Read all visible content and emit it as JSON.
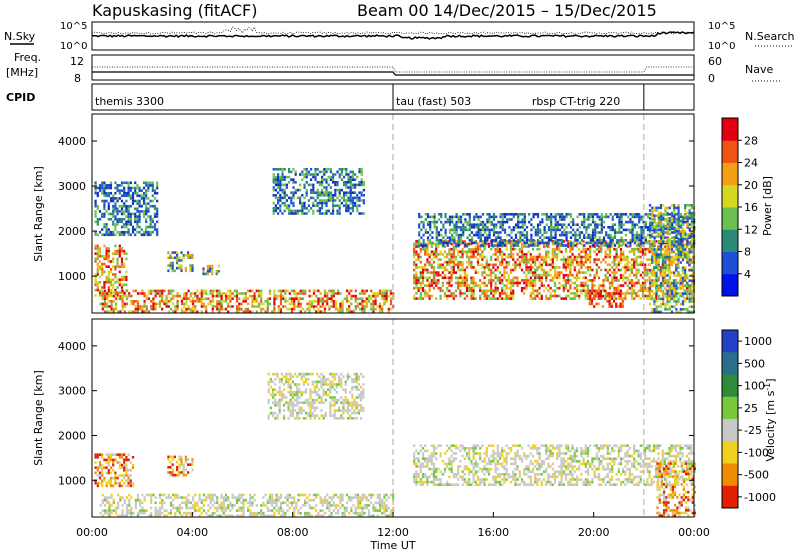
{
  "header": {
    "title": "Kapuskasing (fitACF)",
    "beam_info": "Beam 00",
    "date_range": "14/Dec/2015 – 15/Dec/2015"
  },
  "status_panels": {
    "nsky_label": "N.Sky",
    "nsearch_label": "N.Search",
    "noise_ticks_left": [
      "10^5",
      "10^0"
    ],
    "noise_ticks_right": [
      "10^5",
      "10^0"
    ],
    "freq_label_top": "Freq.",
    "freq_label_unit": "[MHz]",
    "freq_ticks": [
      "12",
      "8"
    ],
    "nave_label": "Nave",
    "nave_ticks": [
      "60",
      "0"
    ],
    "cpid_label": "CPID",
    "cpid_segments": [
      {
        "name": "themis 3300",
        "start_hour": 0,
        "end_hour": 12
      },
      {
        "name": "tau (fast) 503",
        "start_hour": 12,
        "end_hour": 22
      },
      {
        "name": "rbsp CT-trig 220",
        "start_hour": 22,
        "end_hour": 24
      }
    ]
  },
  "chart_data": [
    {
      "type": "heatmap",
      "name": "power",
      "ylabel": "Slant Range [km]",
      "ylim": [
        180,
        4600
      ],
      "yticks": [
        1000,
        2000,
        3000,
        4000
      ],
      "xlim": [
        0,
        24
      ],
      "colorbar_label": "Power [dB]",
      "colorbar_ticks": [
        "4",
        "8",
        "12",
        "16",
        "20",
        "24",
        "28"
      ],
      "colorbar_colors": [
        "#0010e6",
        "#1f4fd6",
        "#2a8a76",
        "#6bbf4f",
        "#d4d81e",
        "#f2a017",
        "#ee5512",
        "#e00010"
      ],
      "regions": [
        {
          "x": [
            0.1,
            2.6
          ],
          "y": [
            1900,
            3100
          ],
          "value": "low"
        },
        {
          "x": [
            0.1,
            1.4
          ],
          "y": [
            600,
            1700
          ],
          "value": "high"
        },
        {
          "x": [
            3.0,
            4.0
          ],
          "y": [
            1100,
            1550
          ],
          "value": "medium"
        },
        {
          "x": [
            4.4,
            5.1
          ],
          "y": [
            1050,
            1250
          ],
          "value": "medium"
        },
        {
          "x": [
            7.2,
            10.8
          ],
          "y": [
            2400,
            3400
          ],
          "value": "low"
        },
        {
          "x": [
            0.3,
            12.0
          ],
          "y": [
            200,
            700
          ],
          "value": "high"
        },
        {
          "x": [
            12.8,
            24.0
          ],
          "y": [
            500,
            1800
          ],
          "value": "high"
        },
        {
          "x": [
            13.0,
            24.0
          ],
          "y": [
            1700,
            2400
          ],
          "value": "low"
        },
        {
          "x": [
            19.8,
            21.2
          ],
          "y": [
            300,
            700
          ],
          "value": "very-high"
        },
        {
          "x": [
            22.2,
            24.0
          ],
          "y": [
            200,
            2600
          ],
          "value": "medium"
        }
      ]
    },
    {
      "type": "heatmap",
      "name": "velocity",
      "ylabel": "Slant Range [km]",
      "ylim": [
        180,
        4600
      ],
      "yticks": [
        1000,
        2000,
        3000,
        4000
      ],
      "xlim": [
        0,
        24
      ],
      "xticks": [
        "00:00",
        "04:00",
        "08:00",
        "12:00",
        "16:00",
        "20:00",
        "00:00"
      ],
      "xlabel": "Time UT",
      "colorbar_label": "Velocity [m s^-1]",
      "colorbar_ticks": [
        "1000",
        "500",
        "100",
        "25",
        "-25",
        "-100",
        "-500",
        "-1000"
      ],
      "colorbar_colors": [
        "#2340c8",
        "#2a6e8c",
        "#2f8a3c",
        "#78c83c",
        "#c8c8c8",
        "#f0d020",
        "#f08c00",
        "#e02000"
      ],
      "regions": [
        {
          "x": [
            0.3,
            12.0
          ],
          "y": [
            200,
            700
          ],
          "value": "-25 to 25"
        },
        {
          "x": [
            0.1,
            1.6
          ],
          "y": [
            900,
            1600
          ],
          "value": "-500 to -100"
        },
        {
          "x": [
            3.0,
            4.0
          ],
          "y": [
            1100,
            1550
          ],
          "value": "-500 to -100"
        },
        {
          "x": [
            7.0,
            10.8
          ],
          "y": [
            2400,
            3400
          ],
          "value": "-25 to 25"
        },
        {
          "x": [
            12.8,
            24.0
          ],
          "y": [
            900,
            1800
          ],
          "value": "-25 to 25"
        },
        {
          "x": [
            22.5,
            24.0
          ],
          "y": [
            200,
            1400
          ],
          "value": "-500 to -100"
        }
      ]
    }
  ]
}
